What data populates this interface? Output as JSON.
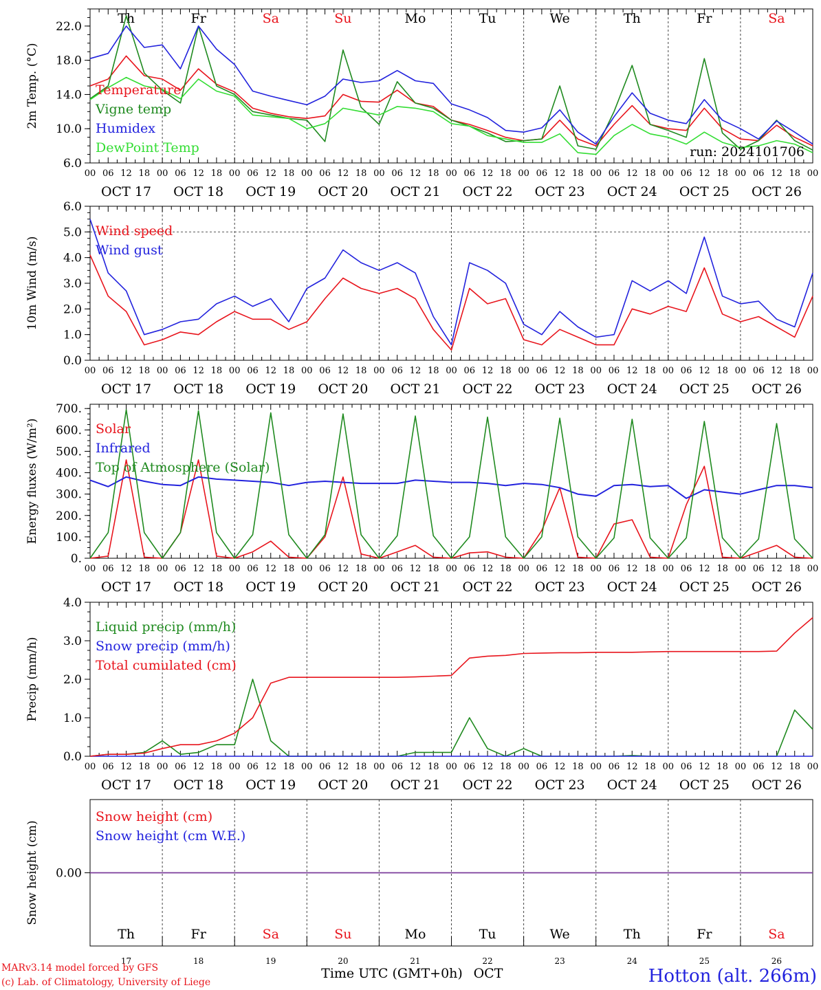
{
  "station_title": "Hotton (alt. 266m)",
  "credits": [
    "MARv3.14 model forced by GFS",
    "(c) Lab. of Climatology, University of Liege"
  ],
  "xaxis_label": "Time UTC (GMT+0h)",
  "month_label": "OCT",
  "run_label": "run: 2024101706",
  "colors": {
    "red": "#e8141c",
    "blue": "#2222dd",
    "green": "#1f8a1f",
    "lightgreen": "#33dd33",
    "purple": "#7a3a9a",
    "black": "#000000"
  },
  "days": [
    {
      "name": "Th",
      "date": "17",
      "date_label": "OCT 17",
      "weekend": false
    },
    {
      "name": "Fr",
      "date": "18",
      "date_label": "OCT 18",
      "weekend": false
    },
    {
      "name": "Sa",
      "date": "19",
      "date_label": "OCT 19",
      "weekend": true
    },
    {
      "name": "Su",
      "date": "20",
      "date_label": "OCT 20",
      "weekend": true
    },
    {
      "name": "Mo",
      "date": "21",
      "date_label": "OCT 21",
      "weekend": false
    },
    {
      "name": "Tu",
      "date": "22",
      "date_label": "OCT 22",
      "weekend": false
    },
    {
      "name": "We",
      "date": "23",
      "date_label": "OCT 23",
      "weekend": false
    },
    {
      "name": "Th",
      "date": "24",
      "date_label": "OCT 24",
      "weekend": false
    },
    {
      "name": "Fr",
      "date": "25",
      "date_label": "OCT 25",
      "weekend": false
    },
    {
      "name": "Sa",
      "date": "26",
      "date_label": "OCT 26",
      "weekend": true
    }
  ],
  "hour_ticks": [
    "00",
    "06",
    "12",
    "18"
  ],
  "chart_data": [
    {
      "id": "temp",
      "type": "line",
      "ylabel": "2m Temp. (°C)",
      "ylim": [
        6,
        24
      ],
      "yticks": [
        "6.0",
        "10.0",
        "14.0",
        "18.0",
        "22.0"
      ],
      "ytick_values": [
        6,
        10,
        14,
        18,
        22
      ],
      "x_hours": [
        0,
        6,
        12,
        18,
        24,
        30,
        36,
        42,
        48,
        54,
        60,
        66,
        72,
        78,
        84,
        90,
        96,
        102,
        108,
        114,
        120,
        126,
        132,
        138,
        144,
        150,
        156,
        162,
        168,
        174,
        180,
        186,
        192,
        198,
        204,
        210,
        216,
        222,
        228,
        234,
        240
      ],
      "series": [
        {
          "name": "Temperature",
          "color": "red",
          "values": [
            15.0,
            15.8,
            18.5,
            16.2,
            15.8,
            14.5,
            17.0,
            15.2,
            14.3,
            12.4,
            11.8,
            11.4,
            11.2,
            11.5,
            14.0,
            13.2,
            13.1,
            14.5,
            13.0,
            12.6,
            11.0,
            10.5,
            9.8,
            9.0,
            8.6,
            8.8,
            11.0,
            8.8,
            8.0,
            10.5,
            12.7,
            10.5,
            10.0,
            9.8,
            12.4,
            10.0,
            8.8,
            8.6,
            10.4,
            9.0,
            8.0
          ]
        },
        {
          "name": "Vigne temp",
          "color": "green",
          "values": [
            13.5,
            15.0,
            23.2,
            16.5,
            14.5,
            13.0,
            22.0,
            15.0,
            14.0,
            12.0,
            11.6,
            11.2,
            11.0,
            8.5,
            19.2,
            12.5,
            10.5,
            15.5,
            13.0,
            12.4,
            11.0,
            10.3,
            9.5,
            8.5,
            8.6,
            8.8,
            15.0,
            8.0,
            7.6,
            12.0,
            17.4,
            10.5,
            9.8,
            9.0,
            18.2,
            9.5,
            7.6,
            8.6,
            11.0,
            8.6,
            7.5
          ]
        },
        {
          "name": "Humidex",
          "color": "blue",
          "values": [
            18.2,
            18.8,
            22.0,
            19.5,
            19.8,
            17.0,
            22.0,
            19.3,
            17.5,
            14.4,
            13.8,
            13.3,
            12.8,
            13.8,
            15.8,
            15.4,
            15.6,
            16.8,
            15.6,
            15.3,
            12.9,
            12.2,
            11.3,
            9.8,
            9.6,
            10.1,
            12.2,
            9.6,
            8.2,
            11.4,
            14.2,
            11.8,
            11.0,
            10.6,
            13.4,
            11.0,
            10.0,
            8.8,
            10.9,
            9.6,
            8.2
          ]
        },
        {
          "name": "DewPoint Temp",
          "color": "lightgreen",
          "values": [
            13.4,
            14.8,
            16.0,
            15.0,
            14.6,
            13.5,
            15.8,
            14.4,
            13.8,
            11.6,
            11.4,
            11.2,
            10.0,
            10.6,
            12.4,
            12.0,
            11.6,
            12.6,
            12.4,
            12.0,
            10.6,
            10.3,
            9.2,
            8.8,
            8.4,
            8.4,
            9.4,
            7.2,
            7.0,
            9.2,
            10.5,
            9.4,
            9.0,
            8.2,
            9.6,
            8.4,
            7.8,
            8.0,
            8.6,
            8.2,
            7.2
          ]
        }
      ]
    },
    {
      "id": "wind",
      "type": "line",
      "ylabel": "10m Wind (m/s)",
      "ylim": [
        0,
        6
      ],
      "yticks": [
        "0.0",
        "1.0",
        "2.0",
        "3.0",
        "4.0",
        "5.0",
        "6.0"
      ],
      "ytick_values": [
        0,
        1,
        2,
        3,
        4,
        5,
        6
      ],
      "x_hours": [
        0,
        6,
        12,
        18,
        24,
        30,
        36,
        42,
        48,
        54,
        60,
        66,
        72,
        78,
        84,
        90,
        96,
        102,
        108,
        114,
        120,
        126,
        132,
        138,
        144,
        150,
        156,
        162,
        168,
        174,
        180,
        186,
        192,
        198,
        204,
        210,
        216,
        222,
        228,
        234,
        240
      ],
      "series": [
        {
          "name": "Wind speed",
          "color": "red",
          "values": [
            4.1,
            2.5,
            1.9,
            0.6,
            0.8,
            1.1,
            1.0,
            1.5,
            1.9,
            1.6,
            1.6,
            1.2,
            1.5,
            2.4,
            3.2,
            2.8,
            2.6,
            2.8,
            2.4,
            1.2,
            0.4,
            2.8,
            2.2,
            2.4,
            0.8,
            0.6,
            1.2,
            0.9,
            0.6,
            0.6,
            2.0,
            1.8,
            2.1,
            1.9,
            3.6,
            1.8,
            1.5,
            1.7,
            1.3,
            0.9,
            2.5
          ]
        },
        {
          "name": "Wind gust",
          "color": "blue",
          "values": [
            5.5,
            3.4,
            2.7,
            1.0,
            1.2,
            1.5,
            1.6,
            2.2,
            2.5,
            2.1,
            2.4,
            1.5,
            2.8,
            3.2,
            4.3,
            3.8,
            3.5,
            3.8,
            3.4,
            1.7,
            0.6,
            3.8,
            3.5,
            3.0,
            1.4,
            1.0,
            1.9,
            1.3,
            0.9,
            1.0,
            3.1,
            2.7,
            3.1,
            2.6,
            4.8,
            2.5,
            2.2,
            2.3,
            1.6,
            1.3,
            3.4
          ]
        }
      ]
    },
    {
      "id": "energy",
      "type": "line",
      "ylabel": "Energy fluxes (W/m²)",
      "ylim": [
        0,
        720
      ],
      "yticks": [
        "0.",
        "100.",
        "200.",
        "300.",
        "400.",
        "500.",
        "600.",
        "700."
      ],
      "ytick_values": [
        0,
        100,
        200,
        300,
        400,
        500,
        600,
        700
      ],
      "x_hours": [
        0,
        6,
        12,
        18,
        24,
        30,
        36,
        42,
        48,
        54,
        60,
        66,
        72,
        78,
        84,
        90,
        96,
        102,
        108,
        114,
        120,
        126,
        132,
        138,
        144,
        150,
        156,
        162,
        168,
        174,
        180,
        186,
        192,
        198,
        204,
        210,
        216,
        222,
        228,
        234,
        240
      ],
      "series": [
        {
          "name": "Solar",
          "color": "red",
          "values": [
            0,
            10,
            460,
            5,
            0,
            120,
            460,
            10,
            0,
            30,
            80,
            5,
            0,
            100,
            380,
            20,
            0,
            30,
            60,
            5,
            0,
            25,
            30,
            5,
            0,
            130,
            330,
            5,
            0,
            160,
            180,
            5,
            0,
            250,
            430,
            5,
            0,
            30,
            60,
            5,
            0
          ]
        },
        {
          "name": "Infrared",
          "color": "blue",
          "values": [
            365,
            335,
            380,
            360,
            345,
            340,
            380,
            370,
            365,
            360,
            355,
            340,
            355,
            360,
            355,
            350,
            350,
            350,
            365,
            360,
            355,
            355,
            350,
            340,
            350,
            345,
            330,
            300,
            290,
            340,
            345,
            335,
            340,
            280,
            320,
            310,
            300,
            320,
            340,
            340,
            330
          ]
        },
        {
          "name": "Top of Atmosphere (Solar)",
          "color": "green",
          "values": [
            0,
            120,
            695,
            120,
            0,
            120,
            690,
            120,
            0,
            110,
            680,
            110,
            0,
            110,
            675,
            110,
            0,
            105,
            665,
            105,
            0,
            100,
            660,
            100,
            0,
            100,
            655,
            100,
            0,
            95,
            650,
            95,
            0,
            95,
            640,
            95,
            0,
            90,
            630,
            90,
            0
          ]
        }
      ]
    },
    {
      "id": "precip",
      "type": "line",
      "ylabel": "Precip (mm/h)",
      "ylim": [
        0,
        4
      ],
      "yticks": [
        "0.0",
        "1.0",
        "2.0",
        "3.0",
        "4.0"
      ],
      "ytick_values": [
        0,
        1,
        2,
        3,
        4
      ],
      "x_hours": [
        0,
        6,
        12,
        18,
        24,
        30,
        36,
        42,
        48,
        54,
        60,
        66,
        72,
        78,
        84,
        90,
        96,
        102,
        108,
        114,
        120,
        126,
        132,
        138,
        144,
        150,
        156,
        162,
        168,
        174,
        180,
        186,
        192,
        198,
        204,
        210,
        216,
        222,
        228,
        234,
        240
      ],
      "series": [
        {
          "name": "Liquid precip (mm/h)",
          "color": "green",
          "values": [
            0.0,
            0.05,
            0.05,
            0.1,
            0.4,
            0.05,
            0.1,
            0.3,
            0.3,
            2.0,
            0.4,
            0.0,
            0.0,
            0.0,
            0.0,
            0.0,
            0.0,
            0.0,
            0.1,
            0.1,
            0.1,
            1.0,
            0.2,
            0.0,
            0.2,
            0.0,
            0.0,
            0.0,
            0.0,
            0.0,
            0.02,
            0.0,
            0.0,
            0.0,
            0.0,
            0.0,
            0.0,
            0.0,
            0.0,
            1.2,
            0.7
          ]
        },
        {
          "name": "Snow precip (mm/h)",
          "color": "blue",
          "values": [
            0,
            0,
            0,
            0,
            0,
            0,
            0,
            0,
            0,
            0,
            0,
            0,
            0,
            0,
            0,
            0,
            0,
            0,
            0,
            0,
            0,
            0,
            0,
            0,
            0,
            0,
            0,
            0,
            0,
            0,
            0,
            0,
            0,
            0,
            0,
            0,
            0,
            0,
            0,
            0,
            0
          ]
        },
        {
          "name": "Total cumulated (cm)",
          "color": "red",
          "values": [
            0.0,
            0.05,
            0.05,
            0.08,
            0.2,
            0.3,
            0.3,
            0.4,
            0.6,
            1.0,
            1.9,
            2.05,
            2.05,
            2.05,
            2.05,
            2.05,
            2.05,
            2.05,
            2.06,
            2.08,
            2.1,
            2.55,
            2.6,
            2.62,
            2.67,
            2.68,
            2.69,
            2.69,
            2.7,
            2.7,
            2.7,
            2.71,
            2.72,
            2.72,
            2.72,
            2.72,
            2.72,
            2.72,
            2.73,
            3.2,
            3.6
          ]
        }
      ]
    },
    {
      "id": "snow",
      "type": "line",
      "ylabel": "Snow height (cm)",
      "ylim": [
        -1,
        1
      ],
      "yticks": [
        "0.00"
      ],
      "ytick_values": [
        0
      ],
      "x_hours": [
        0,
        240
      ],
      "series": [
        {
          "name": "Snow height (cm)",
          "color": "red",
          "values": [
            0,
            0
          ]
        },
        {
          "name": "Snow height (cm W.E.)",
          "color": "blue",
          "values": [
            0,
            0
          ]
        }
      ]
    }
  ]
}
